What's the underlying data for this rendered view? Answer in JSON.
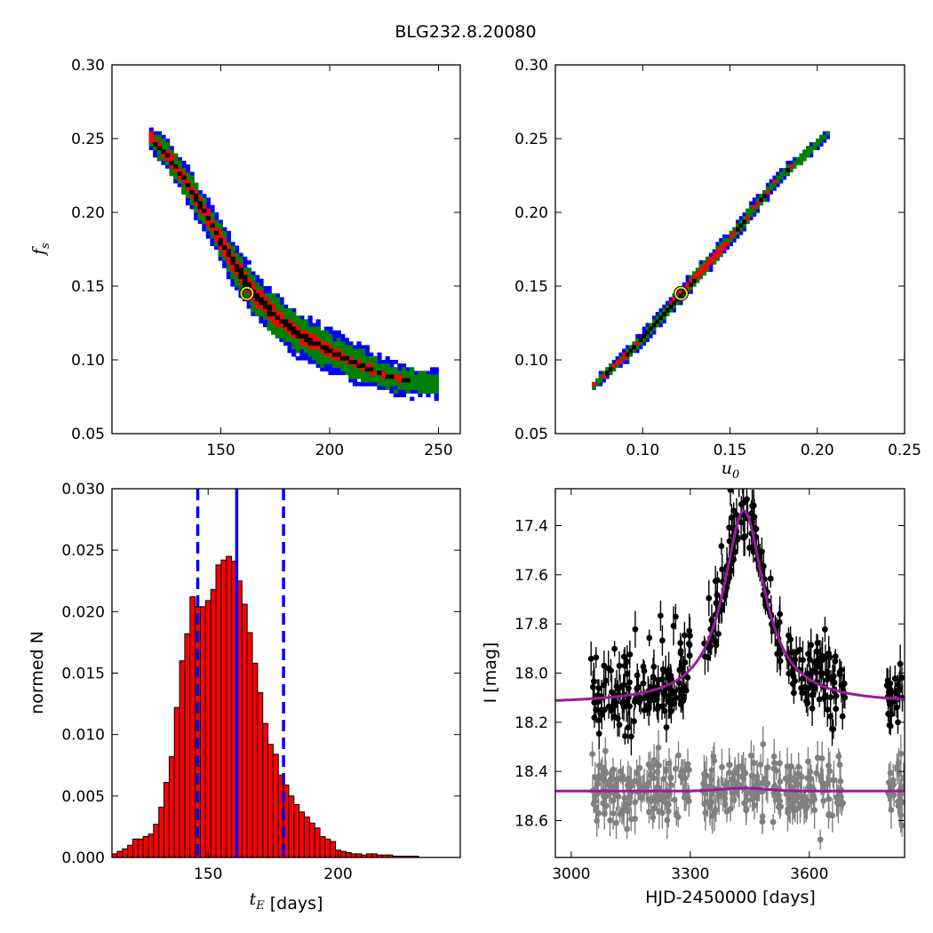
{
  "figure": {
    "title": "BLG232.8.20080"
  },
  "chart_data": [
    {
      "type": "heatmap",
      "panel": "top-left",
      "xlabel": "",
      "ylabel": "f_s",
      "xlim": [
        100,
        260
      ],
      "ylim": [
        0.05,
        0.3
      ],
      "xticks": [
        "150",
        "200",
        "250"
      ],
      "yticks": [
        "0.05",
        "0.10",
        "0.15",
        "0.20",
        "0.25",
        "0.30"
      ],
      "levels": [
        {
          "color": "#0000ff",
          "halfwidth": 0.0155
        },
        {
          "color": "#008000",
          "halfwidth": 0.0115
        },
        {
          "color": "#ff0000",
          "halfwidth": 0.0065
        },
        {
          "color": "#000000",
          "halfwidth": 0.0028
        }
      ],
      "ridge": [
        [
          117,
          0.249
        ],
        [
          125,
          0.236
        ],
        [
          135,
          0.215
        ],
        [
          145,
          0.19
        ],
        [
          155,
          0.164
        ],
        [
          165,
          0.142
        ],
        [
          175,
          0.127
        ],
        [
          185,
          0.116
        ],
        [
          195,
          0.108
        ],
        [
          210,
          0.097
        ],
        [
          225,
          0.088
        ],
        [
          240,
          0.083
        ],
        [
          248,
          0.082
        ]
      ],
      "best_fit": {
        "x": 162,
        "y": 0.145
      }
    },
    {
      "type": "heatmap",
      "panel": "top-right",
      "xlabel": "u_0",
      "ylabel": "",
      "xlim": [
        0.05,
        0.25
      ],
      "ylim": [
        0.05,
        0.3
      ],
      "xticks": [
        "0.10",
        "0.15",
        "0.20",
        "0.25"
      ],
      "yticks": [
        "0.05",
        "0.10",
        "0.15",
        "0.20",
        "0.25",
        "0.30"
      ],
      "ridge": [
        [
          0.071,
          0.082
        ],
        [
          0.095,
          0.108
        ],
        [
          0.122,
          0.145
        ],
        [
          0.15,
          0.182
        ],
        [
          0.175,
          0.22
        ],
        [
          0.205,
          0.252
        ]
      ],
      "best_fit": {
        "x": 0.122,
        "y": 0.145
      }
    },
    {
      "type": "bar",
      "panel": "bottom-left",
      "xlabel": "t_E [days]",
      "ylabel": "normed N",
      "xlim": [
        113,
        247
      ],
      "ylim": [
        0,
        0.03
      ],
      "xticks": [
        "150",
        "200"
      ],
      "yticks": [
        "0.000",
        "0.005",
        "0.010",
        "0.015",
        "0.020",
        "0.025",
        "0.030"
      ],
      "bin_start": 113,
      "bin_width": 2,
      "values": [
        0.0003,
        0.0005,
        0.0007,
        0.001,
        0.0015,
        0.0015,
        0.0017,
        0.0019,
        0.0027,
        0.0041,
        0.0061,
        0.0082,
        0.0122,
        0.016,
        0.0182,
        0.0212,
        0.0204,
        0.0204,
        0.0209,
        0.0218,
        0.0238,
        0.0242,
        0.0245,
        0.0241,
        0.0225,
        0.0206,
        0.0183,
        0.0158,
        0.0134,
        0.0109,
        0.0092,
        0.0084,
        0.0067,
        0.0059,
        0.005,
        0.0043,
        0.0037,
        0.0033,
        0.0028,
        0.0024,
        0.0017,
        0.0015,
        0.0013,
        0.0006,
        0.0005,
        0.0004,
        0.0003,
        0.0003,
        0.0002,
        0.0003,
        0.0003,
        0.0002,
        0.0002,
        0.0002,
        0.0001,
        0.0001,
        0.0001,
        0.0001,
        0.0001
      ],
      "vlines": [
        {
          "x": 146,
          "style": "dashed",
          "color": "#0000ff"
        },
        {
          "x": 161,
          "style": "solid",
          "color": "#0000ff"
        },
        {
          "x": 179,
          "style": "dashed",
          "color": "#0000ff"
        }
      ]
    },
    {
      "type": "scatter",
      "panel": "bottom-right",
      "xlabel": "HJD-2450000 [days]",
      "ylabel": "I [mag]",
      "xlim": [
        2960,
        3840
      ],
      "ylim": [
        18.75,
        17.25
      ],
      "inverted_y": true,
      "xticks": [
        "3000",
        "3300",
        "3600"
      ],
      "yticks": [
        "17.4",
        "17.6",
        "17.8",
        "18.0",
        "18.2",
        "18.4",
        "18.6"
      ],
      "series": [
        {
          "color": "#000000",
          "baseline": 18.125
        },
        {
          "color": "#808080",
          "baseline": 18.48
        }
      ],
      "model": {
        "color": "#9b1aa0",
        "t0": 3435,
        "peak": 17.34,
        "baseline": 18.125,
        "baseline2": 18.48
      }
    }
  ]
}
